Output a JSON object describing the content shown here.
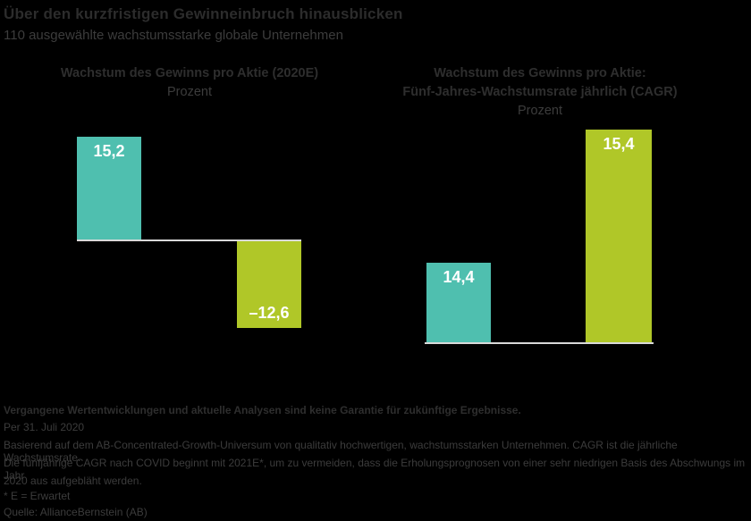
{
  "colors": {
    "background": "#000000",
    "teal": "#4fbfaf",
    "lime": "#b0c728",
    "heading_text": "#2c2c2c",
    "body_text": "#3c3c3c",
    "bar_value_label": "#ffffff",
    "baseline": "#d9d9d9"
  },
  "header": {
    "title": "Über den kurzfristigen Gewinneinbruch hinausblicken",
    "subtitle": "110 ausgewählte wachstumsstarke globale Unternehmen"
  },
  "chart_data": [
    {
      "type": "bar",
      "title": "Wachstum des Gewinns pro Aktie (2020E)",
      "ylabel": "Prozent",
      "values": [
        15.2,
        -12.6
      ],
      "value_labels": [
        "15,2",
        "–12,6"
      ],
      "bar_colors": [
        "#4fbfaf",
        "#b0c728"
      ],
      "baseline_value": 0,
      "legend": "none",
      "grid": false
    },
    {
      "type": "bar",
      "title": "Wachstum des Gewinns pro Aktie:",
      "title_line2": "Fünf-Jahres-Wachstumsrate jährlich (CAGR)",
      "ylabel": "Prozent",
      "values": [
        14.4,
        15.4
      ],
      "value_labels": [
        "14,4",
        "15,4"
      ],
      "bar_colors": [
        "#4fbfaf",
        "#b0c728"
      ],
      "baseline_value": 0,
      "legend": "none",
      "grid": false
    }
  ],
  "footer": {
    "disclaimer_bold": "Vergangene Wertentwicklungen und aktuelle Analysen sind keine Garantie für zukünftige Ergebnisse.",
    "as_of": "Per 31. Juli 2020",
    "note_lines": [
      "Basierend auf dem AB-Concentrated-Growth-Universum von qualitativ hochwertigen, wachstumsstarken Unternehmen. CAGR ist die jährliche Wachstumsrate.",
      "Die fünfjährige CAGR nach COVID beginnt mit 2021E*, um zu vermeiden, dass die Erholungsprognosen von einer sehr niedrigen Basis des Abschwungs im Jahr",
      "2020 aus aufgebläht werden."
    ],
    "footnote": "* E = Erwartet",
    "source": "Quelle: AllianceBernstein (AB)"
  }
}
